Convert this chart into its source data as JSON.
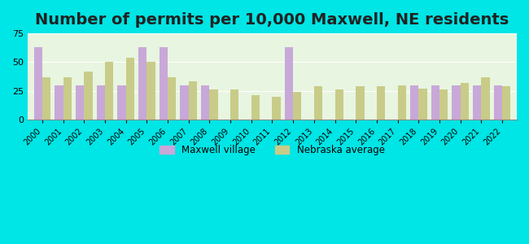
{
  "title": "Number of permits per 10,000 Maxwell, NE residents",
  "years": [
    2000,
    2001,
    2002,
    2003,
    2004,
    2005,
    2006,
    2007,
    2008,
    2009,
    2010,
    2011,
    2012,
    2013,
    2014,
    2015,
    2016,
    2017,
    2018,
    2019,
    2020,
    2021,
    2022
  ],
  "maxwell": [
    63,
    30,
    30,
    30,
    30,
    63,
    63,
    30,
    30,
    0,
    0,
    0,
    63,
    0,
    0,
    0,
    0,
    0,
    30,
    30,
    30,
    30,
    30
  ],
  "nebraska": [
    37,
    37,
    42,
    50,
    54,
    50,
    37,
    33,
    26,
    26,
    21,
    20,
    24,
    29,
    26,
    29,
    29,
    30,
    27,
    26,
    32,
    37,
    29
  ],
  "maxwell_color": "#c8a8d8",
  "nebraska_color": "#c8cc88",
  "background_outer": "#00e5e5",
  "background_plot": "#e8f5e0",
  "ylim": [
    0,
    75
  ],
  "yticks": [
    0,
    25,
    50,
    75
  ],
  "title_fontsize": 14,
  "bar_width": 0.4,
  "legend_maxwell": "Maxwell village",
  "legend_nebraska": "Nebraska average"
}
